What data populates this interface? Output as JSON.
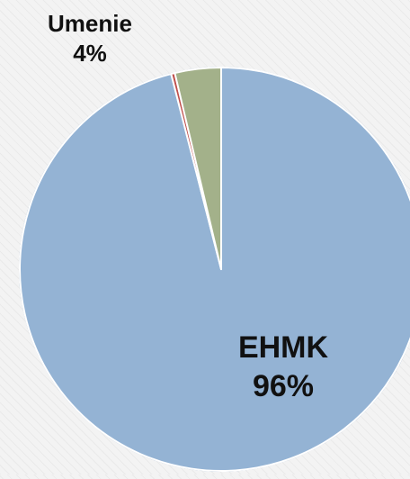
{
  "chart_data": {
    "type": "pie",
    "slices": [
      {
        "label": "EHMK",
        "value": 96,
        "percent_label": "96%",
        "color": "#94b3d4"
      },
      {
        "label": "",
        "value": 0.3,
        "percent_label": "",
        "color": "#c0504d"
      },
      {
        "label": "Umenie",
        "value": 3.7,
        "percent_label": "4%",
        "color": "#a3b18a"
      }
    ],
    "start": "12 o'clock",
    "direction": "clockwise",
    "legend": "none",
    "border_color": "#ffffff"
  }
}
